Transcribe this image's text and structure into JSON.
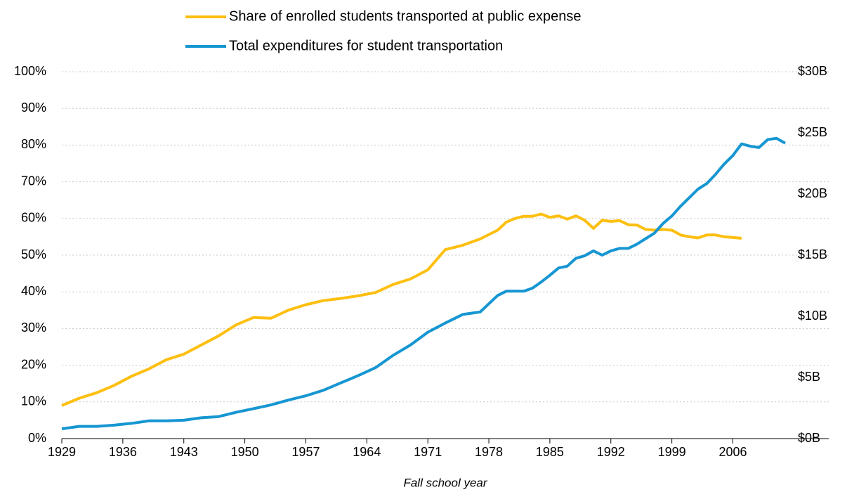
{
  "chart_data": {
    "type": "line",
    "x_label": "Fall school year",
    "x": [
      1929,
      1931,
      1933,
      1935,
      1937,
      1939,
      1941,
      1943,
      1945,
      1947,
      1949,
      1951,
      1953,
      1955,
      1957,
      1959,
      1961,
      1963,
      1965,
      1967,
      1969,
      1971,
      1973,
      1975,
      1977,
      1979,
      1980,
      1981,
      1982,
      1983,
      1984,
      1985,
      1986,
      1987,
      1988,
      1989,
      1990,
      1991,
      1992,
      1993,
      1994,
      1995,
      1996,
      1997,
      1998,
      1999,
      2000,
      2001,
      2002,
      2003,
      2004,
      2005,
      2006,
      2007,
      2008,
      2009,
      2010,
      2011,
      2012
    ],
    "series": [
      {
        "name": "Share of enrolled students transported at public expense",
        "color": "#fdbf11",
        "axis": "y",
        "values": [
          9,
          11,
          12.5,
          14.5,
          17,
          19,
          21.5,
          23,
          25.5,
          28,
          31,
          33,
          32.8,
          35,
          36.5,
          37.6,
          38.2,
          38.9,
          39.8,
          42,
          43.5,
          46,
          51.5,
          52.7,
          54.4,
          56.8,
          59,
          60,
          60.6,
          60.6,
          61.2,
          60.3,
          60.7,
          59.8,
          60.7,
          59.5,
          57.3,
          59.5,
          59.2,
          59.4,
          58.3,
          58.2,
          57,
          56.8,
          57,
          56.8,
          55.5,
          55,
          54.7,
          55.5,
          55.5,
          55,
          54.8,
          54.6,
          null,
          null,
          null,
          null,
          null
        ]
      },
      {
        "name": "Total expenditures for student transportation",
        "color": "#1696d2",
        "axis": "y2",
        "values": [
          0.8,
          1.0,
          1.0,
          1.1,
          1.25,
          1.45,
          1.45,
          1.5,
          1.7,
          1.8,
          2.15,
          2.45,
          2.75,
          3.15,
          3.5,
          3.95,
          4.55,
          5.15,
          5.8,
          6.8,
          7.65,
          8.7,
          9.45,
          10.15,
          10.35,
          11.7,
          12.05,
          12.05,
          12.05,
          12.3,
          12.8,
          13.35,
          13.95,
          14.1,
          14.75,
          14.95,
          15.35,
          15.0,
          15.35,
          15.55,
          15.55,
          15.9,
          16.35,
          16.8,
          17.6,
          18.2,
          19.0,
          19.7,
          20.4,
          20.85,
          21.6,
          22.45,
          23.15,
          24.1,
          23.9,
          23.8,
          24.45,
          24.55,
          24.15
        ]
      }
    ],
    "xlim": [
      1929,
      2017
    ],
    "xticks": [
      1929,
      1936,
      1943,
      1950,
      1957,
      1964,
      1971,
      1978,
      1985,
      1992,
      1999,
      2006
    ],
    "ylim": [
      0,
      100
    ],
    "yticks": [
      {
        "value": 0,
        "label": "0%"
      },
      {
        "value": 10,
        "label": "10%"
      },
      {
        "value": 20,
        "label": "20%"
      },
      {
        "value": 30,
        "label": "30%"
      },
      {
        "value": 40,
        "label": "40%"
      },
      {
        "value": 50,
        "label": "50%"
      },
      {
        "value": 60,
        "label": "60%"
      },
      {
        "value": 70,
        "label": "70%"
      },
      {
        "value": 80,
        "label": "80%"
      },
      {
        "value": 90,
        "label": "90%"
      },
      {
        "value": 100,
        "label": "100%"
      }
    ],
    "y2lim": [
      0,
      30
    ],
    "y2ticks": [
      {
        "value": 0,
        "label": "$0B"
      },
      {
        "value": 5,
        "label": "$5B"
      },
      {
        "value": 10,
        "label": "$10B"
      },
      {
        "value": 15,
        "label": "$15B"
      },
      {
        "value": 20,
        "label": "$20B"
      },
      {
        "value": 25,
        "label": "$25B"
      },
      {
        "value": 30,
        "label": "$30B"
      }
    ],
    "grid": true,
    "legend": "top"
  }
}
